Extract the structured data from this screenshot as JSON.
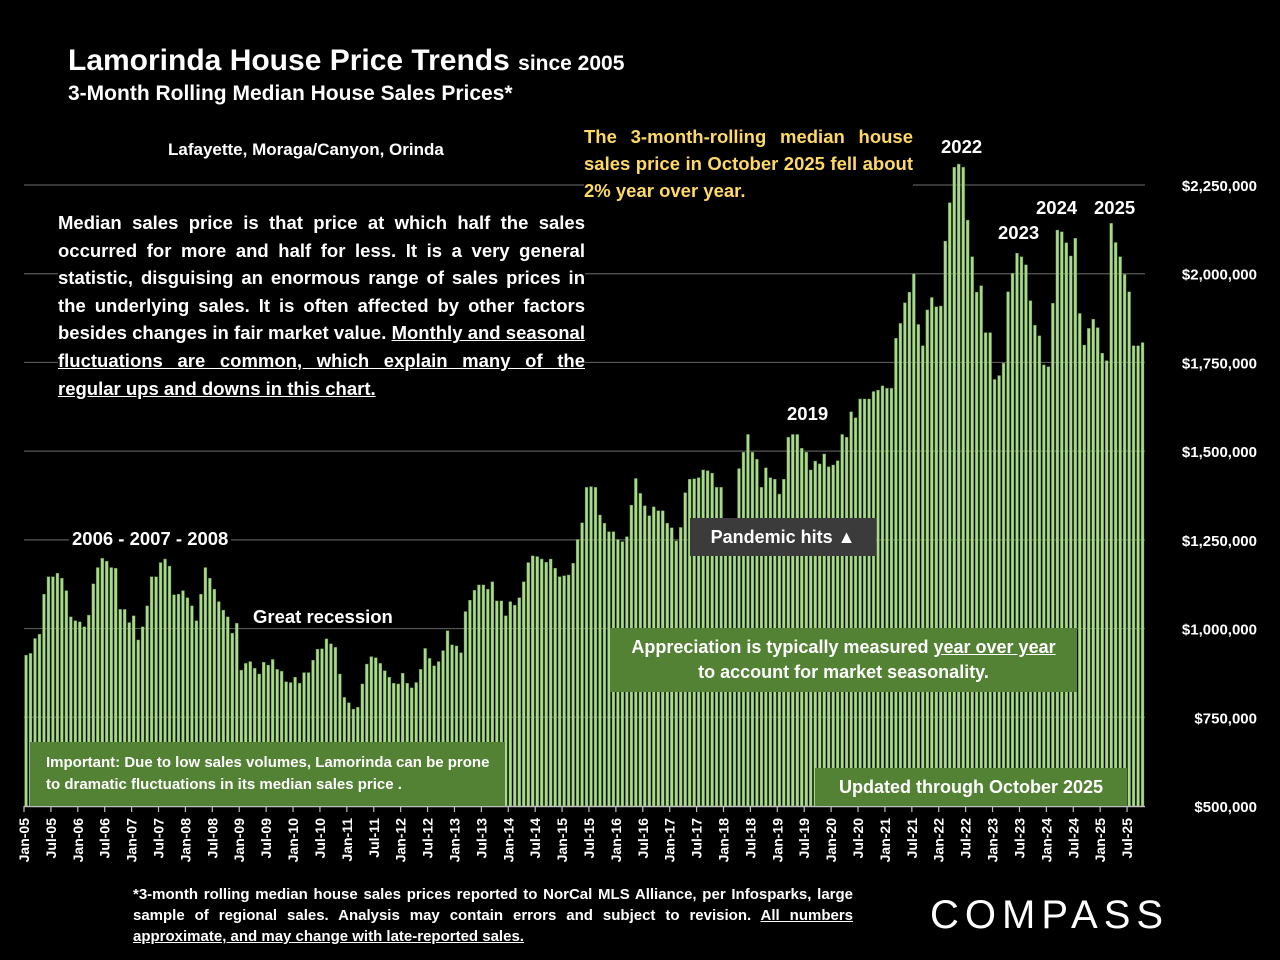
{
  "header": {
    "title": "Lamorinda House Price Trends",
    "title_suffix": "since 2005",
    "subtitle": "3-Month Rolling Median House Sales Prices*",
    "region": "Lafayette, Moraga/Canyon, Orinda"
  },
  "annotations": {
    "yoy_note": "The 3-month-rolling median house sales price in October 2025 fell about 2% year over year.",
    "para_plain": "Median sales price is that price at which half the sales occurred for more and half for less. It is a very general statistic, disguising an enormous range of sales prices in the underlying sales. It is often affected by other factors besides changes in fair market value. ",
    "para_underlined": "Monthly and seasonal fluctuations are common, which explain many of the regular ups and downs in this chart.",
    "label_2006_2008": "2006 - 2007 - 2008",
    "label_recession": "Great recession",
    "label_2019": "2019",
    "label_2022": "2022",
    "label_2023": "2023",
    "label_2024": "2024",
    "label_2025": "2025",
    "pandemic": "Pandemic hits ▲",
    "apprec_a": "Appreciation is typically measured ",
    "apprec_u": "year over year",
    "apprec_b": "to account for market seasonality.",
    "important": "Important: Due to low sales volumes, Lamorinda can be prone to dramatic fluctuations in its median sales price .",
    "updated": "Updated through October 2025"
  },
  "footer": {
    "plain": "*3-month rolling median house sales prices reported to NorCal MLS Alliance, per Infosparks, large sample of regional sales. Analysis may contain errors and subject to revision. ",
    "underlined": "All numbers approximate, and may change with late-reported sales.",
    "logo": "COMPASS"
  },
  "colors": {
    "bar": "#a9d98a",
    "bar_edge": "#5f8f45",
    "grid": "#595959",
    "accent_yellow": "#ffd966",
    "box_green": "#548235",
    "box_gray": "#3b3b3b"
  },
  "chart_data": {
    "type": "bar",
    "x_start": "Jan-05",
    "x_end": "Oct-25",
    "frequency": "monthly",
    "ylim": [
      500000,
      2250000
    ],
    "yticks": [
      500000,
      750000,
      1000000,
      1250000,
      1500000,
      1750000,
      2000000,
      2250000
    ],
    "ytick_labels": [
      "$500,000",
      "$750,000",
      "$1,000,000",
      "$1,250,000",
      "$1,500,000",
      "$1,750,000",
      "$2,000,000",
      "$2,250,000"
    ],
    "xtick_labels": [
      "Jan-05",
      "Jul-05",
      "Jan-06",
      "Jul-06",
      "Jan-07",
      "Jul-07",
      "Jan-08",
      "Jul-08",
      "Jan-09",
      "Jul-09",
      "Jan-10",
      "Jul-10",
      "Jan-11",
      "Jul-11",
      "Jan-12",
      "Jul-12",
      "Jan-13",
      "Jul-13",
      "Jan-14",
      "Jul-14",
      "Jan-15",
      "Jul-15",
      "Jan-16",
      "Jul-16",
      "Jan-17",
      "Jul-17",
      "Jan-18",
      "Jul-18",
      "Jan-19",
      "Jul-19",
      "Jan-20",
      "Jul-20",
      "Jan-21",
      "Jul-21",
      "Jan-22",
      "Jul-22",
      "Jan-23",
      "Jul-23",
      "Jan-24",
      "Jul-24",
      "Jan-25",
      "Jul-25"
    ],
    "grid": true,
    "values": [
      925000,
      930000,
      972000,
      984000,
      1097000,
      1146000,
      1146000,
      1156000,
      1142000,
      1107000,
      1033000,
      1022000,
      1019000,
      1005000,
      1038000,
      1126000,
      1172000,
      1198000,
      1190000,
      1172000,
      1170000,
      1054000,
      1054000,
      1017000,
      1036000,
      968000,
      1005000,
      1064000,
      1146000,
      1146000,
      1186000,
      1196000,
      1176000,
      1095000,
      1097000,
      1107000,
      1087000,
      1064000,
      1022000,
      1097000,
      1172000,
      1142000,
      1111000,
      1076000,
      1052000,
      1033000,
      987000,
      1015000,
      883000,
      902000,
      907000,
      888000,
      872000,
      905000,
      897000,
      913000,
      885000,
      880000,
      850000,
      848000,
      863000,
      846000,
      876000,
      876000,
      911000,
      942000,
      943000,
      971000,
      957000,
      947000,
      872000,
      806000,
      791000,
      773000,
      778000,
      844000,
      900000,
      921000,
      918000,
      902000,
      881000,
      863000,
      846000,
      844000,
      874000,
      846000,
      833000,
      848000,
      885000,
      944000,
      916000,
      895000,
      907000,
      938000,
      994000,
      954000,
      951000,
      932000,
      1048000,
      1080000,
      1108000,
      1123000,
      1123000,
      1111000,
      1132000,
      1078000,
      1078000,
      1036000,
      1076000,
      1066000,
      1087000,
      1132000,
      1186000,
      1205000,
      1203000,
      1196000,
      1187000,
      1196000,
      1170000,
      1146000,
      1149000,
      1151000,
      1184000,
      1251000,
      1298000,
      1398000,
      1400000,
      1398000,
      1320000,
      1297000,
      1273000,
      1273000,
      1251000,
      1245000,
      1259000,
      1348000,
      1423000,
      1381000,
      1346000,
      1318000,
      1343000,
      1332000,
      1332000,
      1297000,
      1284000,
      1247000,
      1285000,
      1383000,
      1421000,
      1422000,
      1425000,
      1447000,
      1445000,
      1438000,
      1398000,
      1398000,
      1270000,
      1250000,
      1300000,
      1451000,
      1497000,
      1547000,
      1497000,
      1477000,
      1398000,
      1453000,
      1425000,
      1421000,
      1379000,
      1421000,
      1539000,
      1547000,
      1547000,
      1508000,
      1497000,
      1447000,
      1472000,
      1464000,
      1492000,
      1456000,
      1461000,
      1473000,
      1547000,
      1539000,
      1611000,
      1594000,
      1647000,
      1647000,
      1647000,
      1668000,
      1672000,
      1684000,
      1677000,
      1677000,
      1818000,
      1860000,
      1918000,
      1948000,
      2000000,
      1857000,
      1797000,
      1898000,
      1933000,
      1907000,
      1909000,
      2092000,
      2200000,
      2300000,
      2309000,
      2300000,
      2151000,
      2048000,
      1948000,
      1966000,
      1834000,
      1834000,
      1702000,
      1713000,
      1748000,
      1949000,
      2001000,
      2058000,
      2048000,
      2025000,
      1924000,
      1855000,
      1825000,
      1743000,
      1738000,
      1917000,
      2123000,
      2118000,
      2087000,
      2050000,
      2100000,
      1888000,
      1799000,
      1846000,
      1872000,
      1848000,
      1776000,
      1755000,
      2142000,
      2088000,
      2048000,
      1998000,
      1949000,
      1797000,
      1797000,
      1806000
    ]
  }
}
